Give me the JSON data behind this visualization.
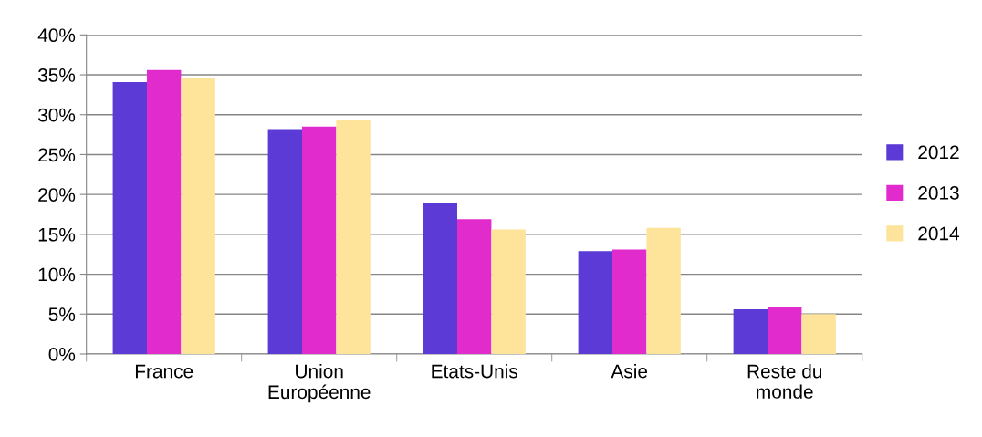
{
  "chart_data": {
    "type": "bar",
    "categories": [
      "France",
      "Union Européenne",
      "Etats-Unis",
      "Asie",
      "Reste du monde"
    ],
    "series": [
      {
        "name": "2012",
        "color": "#5b3ad6",
        "values": [
          34.1,
          28.2,
          19.0,
          12.9,
          5.6
        ]
      },
      {
        "name": "2013",
        "color": "#e22bcc",
        "values": [
          35.6,
          28.5,
          16.9,
          13.1,
          5.9
        ]
      },
      {
        "name": "2014",
        "color": "#fde49a",
        "values": [
          34.6,
          29.4,
          15.6,
          15.8,
          5.0
        ]
      }
    ],
    "ylim": [
      0,
      40
    ],
    "yticks": [
      {
        "value": 0,
        "label": "0%"
      },
      {
        "value": 5,
        "label": "5%"
      },
      {
        "value": 10,
        "label": "10%"
      },
      {
        "value": 15,
        "label": "15%"
      },
      {
        "value": 20,
        "label": "20%"
      },
      {
        "value": 25,
        "label": "25%"
      },
      {
        "value": 30,
        "label": "30%"
      },
      {
        "value": 35,
        "label": "35%"
      },
      {
        "value": 40,
        "label": "40%"
      }
    ],
    "grid": "y",
    "legend": "right"
  }
}
